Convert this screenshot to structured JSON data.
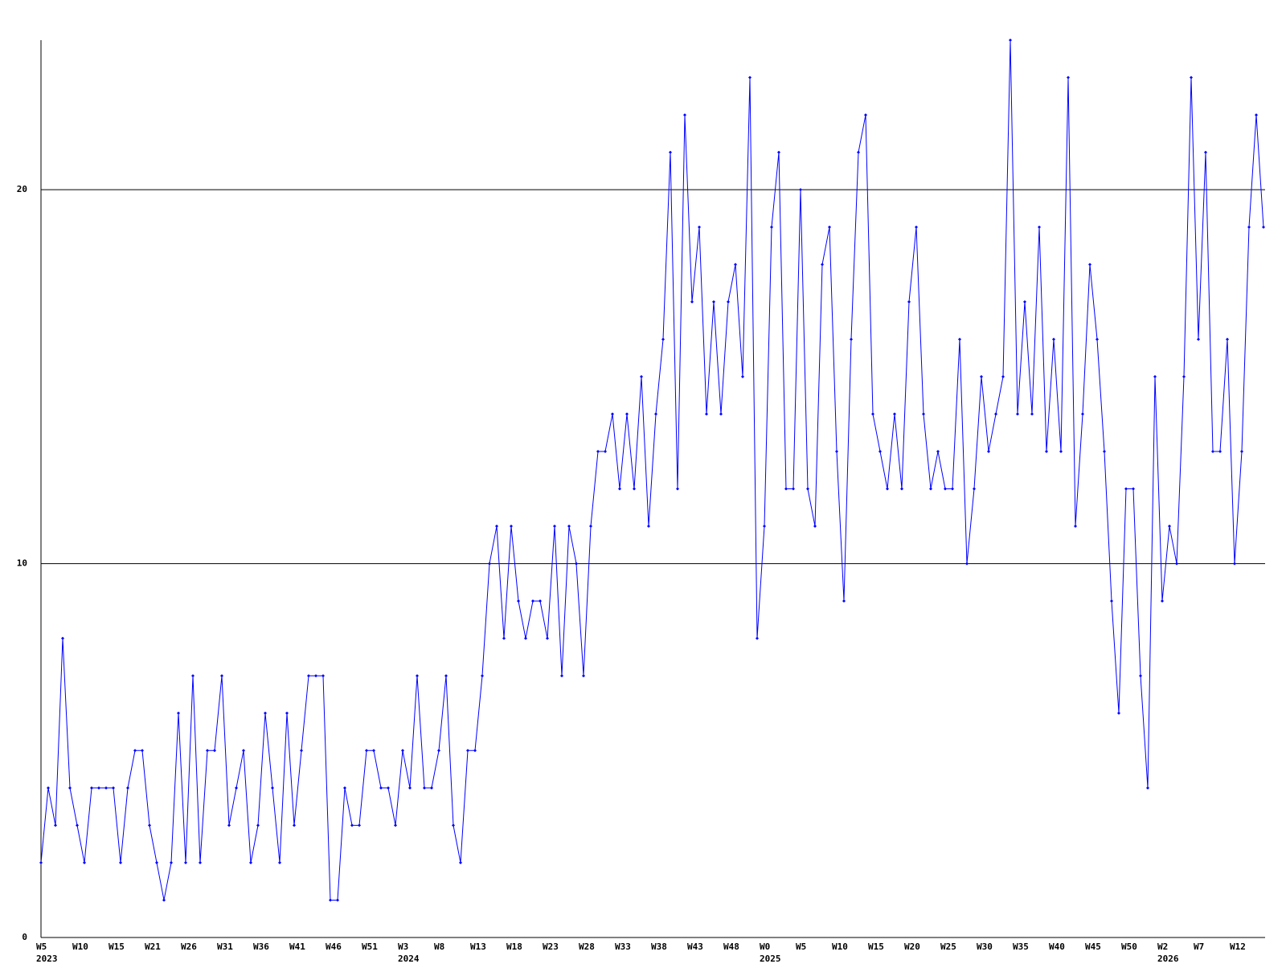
{
  "chart_data": {
    "type": "line",
    "categories": [
      "W5",
      null,
      null,
      null,
      null,
      "W10",
      null,
      null,
      null,
      null,
      "W15",
      null,
      null,
      null,
      null,
      "W21",
      null,
      null,
      null,
      null,
      "W26",
      null,
      null,
      null,
      null,
      "W31",
      null,
      null,
      null,
      null,
      "W36",
      null,
      null,
      null,
      null,
      "W41",
      null,
      null,
      null,
      null,
      "W46",
      null,
      null,
      null,
      null,
      "W51",
      null,
      null,
      null,
      null,
      "W3",
      null,
      null,
      null,
      null,
      "W8",
      null,
      null,
      null,
      null,
      "W13",
      null,
      null,
      null,
      null,
      "W18",
      null,
      null,
      null,
      null,
      "W23",
      null,
      null,
      null,
      null,
      "W28",
      null,
      null,
      null,
      null,
      "W33",
      null,
      null,
      null,
      null,
      "W38",
      null,
      null,
      null,
      null,
      "W43",
      null,
      null,
      null,
      null,
      "W48",
      null,
      null,
      null,
      null,
      "W0",
      null,
      null,
      null,
      null,
      "W5",
      null,
      null,
      null,
      null,
      "W10",
      null,
      null,
      null,
      null,
      "W15",
      null,
      null,
      null,
      null,
      "W20",
      null,
      null,
      null,
      null,
      "W25",
      null,
      null,
      null,
      null,
      "W30",
      null,
      null,
      null,
      null,
      "W35",
      null,
      null,
      null,
      null,
      "W40",
      null,
      null,
      null,
      null,
      "W45",
      null,
      null,
      null,
      null,
      "W50",
      null,
      null,
      null,
      null,
      "W2",
      null,
      null,
      null,
      null,
      "W7",
      null,
      null,
      null,
      null,
      "W12",
      null,
      null,
      null,
      null
    ],
    "years": [
      "2023",
      null,
      null,
      null,
      null,
      null,
      null,
      null,
      null,
      null,
      null,
      null,
      null,
      null,
      null,
      null,
      null,
      null,
      null,
      null,
      null,
      null,
      null,
      null,
      null,
      null,
      null,
      null,
      null,
      null,
      null,
      null,
      null,
      null,
      null,
      null,
      null,
      null,
      null,
      null,
      null,
      null,
      null,
      null,
      null,
      null,
      null,
      null,
      null,
      null,
      "2024",
      null,
      null,
      null,
      null,
      null,
      null,
      null,
      null,
      null,
      null,
      null,
      null,
      null,
      null,
      null,
      null,
      null,
      null,
      null,
      null,
      null,
      null,
      null,
      null,
      null,
      null,
      null,
      null,
      null,
      null,
      null,
      null,
      null,
      null,
      null,
      null,
      null,
      null,
      null,
      null,
      null,
      null,
      null,
      null,
      null,
      null,
      null,
      null,
      null,
      "2025",
      null,
      null,
      null,
      null,
      null,
      null,
      null,
      null,
      null,
      null,
      null,
      null,
      null,
      null,
      null,
      null,
      null,
      null,
      null,
      null,
      null,
      null,
      null,
      null,
      null,
      null,
      null,
      null,
      null,
      null,
      null,
      null,
      null,
      null,
      null,
      null,
      null,
      null,
      null,
      null,
      null,
      null,
      null,
      null,
      null,
      null,
      null,
      null,
      null,
      null,
      null,
      null,
      null,
      null,
      "2026",
      null,
      null,
      null,
      null,
      null,
      null,
      null,
      null,
      null,
      null,
      null,
      null,
      null,
      null
    ],
    "series": [
      {
        "color": "#0000ff",
        "values": [
          2,
          4,
          3,
          8,
          4,
          3,
          2,
          4,
          4,
          4,
          4,
          2,
          4,
          5,
          5,
          3,
          2,
          1,
          2,
          6,
          2,
          7,
          2,
          5,
          5,
          7,
          3,
          4,
          5,
          2,
          3,
          6,
          4,
          2,
          6,
          3,
          5,
          7,
          7,
          7,
          1,
          1,
          4,
          3,
          3,
          5,
          5,
          4,
          4,
          3,
          5,
          4,
          7,
          4,
          4,
          5,
          7,
          3,
          2,
          5,
          5,
          7,
          10,
          11,
          8,
          11,
          9,
          8,
          9,
          9,
          8,
          11,
          7,
          11,
          10,
          7,
          11,
          13,
          13,
          14,
          12,
          14,
          12,
          15,
          11,
          14,
          16,
          21,
          12,
          22,
          17,
          19,
          14,
          17,
          14,
          17,
          18,
          15,
          23,
          8,
          11,
          19,
          21,
          12,
          12,
          20,
          12,
          11,
          18,
          19,
          13,
          9,
          16,
          21,
          22,
          14,
          13,
          12,
          14,
          12,
          17,
          19,
          14,
          12,
          13,
          12,
          12,
          16,
          10,
          12,
          15,
          13,
          14,
          15,
          24,
          14,
          17,
          14,
          19,
          13,
          16,
          13,
          23,
          11,
          14,
          18,
          16,
          13,
          9,
          6,
          12,
          12,
          7,
          4,
          15,
          9,
          11,
          10,
          15,
          23,
          16,
          21,
          13,
          13,
          16,
          10,
          13,
          19,
          22,
          19
        ]
      }
    ],
    "ylim": [
      0,
      24
    ],
    "yticks": [
      0,
      10,
      20
    ],
    "grid": true
  }
}
